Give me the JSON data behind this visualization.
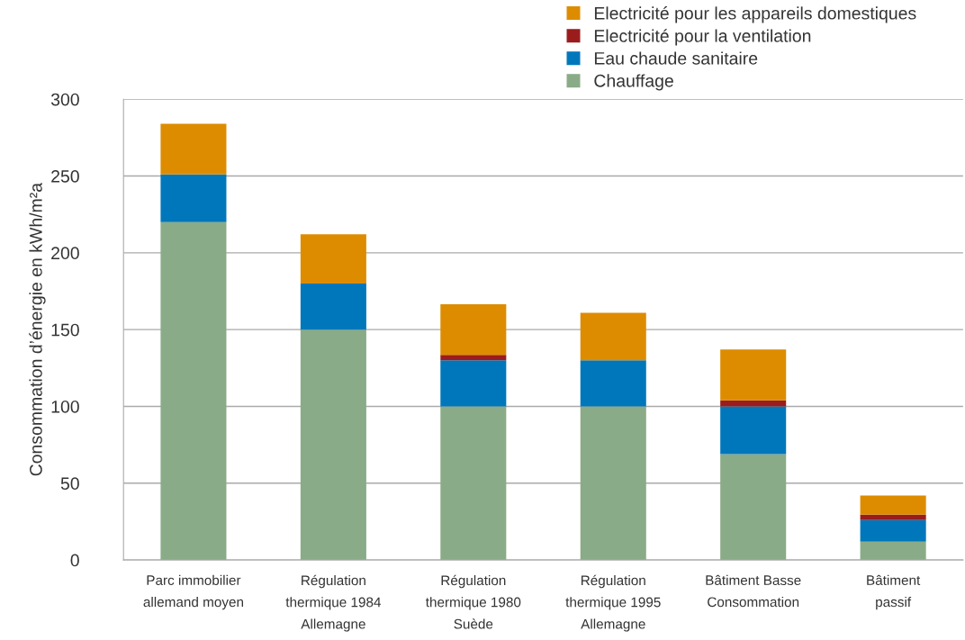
{
  "chart_data": {
    "type": "bar",
    "stacked": true,
    "ylabel": "Consommation d’énergie en kWh/m²a",
    "categories": [
      "Parc immobilier\nallemand moyen",
      "Régulation\nthermique 1984\nAllemagne",
      "Régulation\nthermique 1980\nSuède",
      "Régulation\nthermique 1995\nAllemagne",
      "Bâtiment Basse\nConsommation",
      "Bâtiment\npassif"
    ],
    "series": [
      {
        "name": "Chauffage",
        "color": "#8aab87",
        "values": [
          220,
          150,
          100,
          100,
          69,
          12
        ]
      },
      {
        "name": "Eau chaude sanitaire",
        "color": "#0077bb",
        "values": [
          31,
          30,
          30,
          30,
          31,
          14
        ]
      },
      {
        "name": "Electricité pour la ventilation",
        "color": "#9b1c1c",
        "values": [
          null,
          null,
          3.5,
          null,
          4,
          3.5
        ]
      },
      {
        "name": "Electricité pour les appareils domestiques",
        "color": "#dd8c00",
        "values": [
          33,
          32,
          33,
          31,
          33,
          12.5
        ]
      }
    ],
    "ylim": [
      0,
      300
    ],
    "yticks": [
      0,
      50,
      100,
      150,
      200,
      250,
      300
    ],
    "grid": "y",
    "legend": "top right"
  }
}
